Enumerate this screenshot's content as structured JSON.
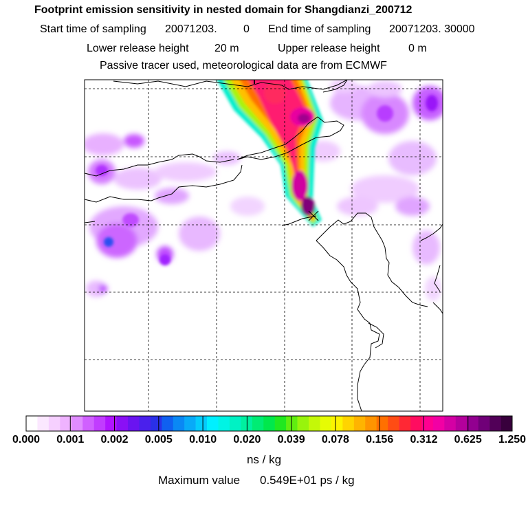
{
  "header": {
    "title": "Footprint emission sensitivity in nested domain for Shangdianzi_200712",
    "start_label": "Start time of sampling",
    "start_value": "20071203.",
    "start_hour": "0",
    "end_label": "End time of sampling",
    "end_value": "20071203. 30000",
    "lower_label": "Lower release height",
    "lower_value": "20 m",
    "upper_label": "Upper release height",
    "upper_value": "0 m",
    "tracer_note": "Passive tracer used, meteorological data are from ECMWF"
  },
  "colorbar": {
    "tick_labels": [
      "0.000",
      "0.001",
      "0.002",
      "0.005",
      "0.010",
      "0.020",
      "0.039",
      "0.078",
      "0.156",
      "0.312",
      "0.625",
      "1.250"
    ],
    "colors": [
      "#ffffff",
      "#fbe8ff",
      "#f6d0ff",
      "#efb3ff",
      "#e08cff",
      "#d060ff",
      "#c13cff",
      "#b014ff",
      "#8a10f5",
      "#6a14f0",
      "#4a20ec",
      "#2a30e8",
      "#1060f0",
      "#0a88f4",
      "#08aaf8",
      "#04ccfc",
      "#00f0ff",
      "#00f4e4",
      "#00f2c4",
      "#00f0a0",
      "#00ec74",
      "#00e84c",
      "#20e820",
      "#60ee10",
      "#98f40c",
      "#c4f808",
      "#e6fc04",
      "#fcf400",
      "#ffd400",
      "#ffb400",
      "#ff9400",
      "#ff7000",
      "#ff4c14",
      "#ff2834",
      "#ff0c60",
      "#ff0090",
      "#f200a4",
      "#d400a4",
      "#b4009c",
      "#920090",
      "#700078",
      "#520058",
      "#38003c"
    ],
    "unit": "ns / kg",
    "max_label": "Maximum value",
    "max_value": "0.549E+01 ps / kg"
  }
}
